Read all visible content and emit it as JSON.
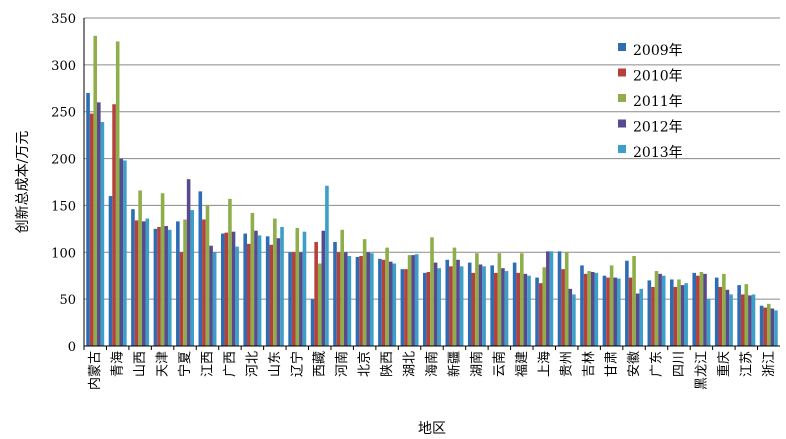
{
  "chart_data": {
    "type": "bar",
    "xlabel": "地区",
    "ylabel": "创新总成本/万元",
    "ylim": [
      0,
      350
    ],
    "yticks": [
      0,
      50,
      100,
      150,
      200,
      250,
      300,
      350
    ],
    "grid": true,
    "legend_position": "top-right",
    "categories": [
      "内蒙古",
      "青海",
      "山西",
      "天津",
      "宁夏",
      "江西",
      "广西",
      "河北",
      "山东",
      "辽宁",
      "西藏",
      "河南",
      "北京",
      "陕西",
      "湖北",
      "海南",
      "新疆",
      "湖南",
      "云南",
      "福建",
      "上海",
      "贵州",
      "吉林",
      "甘肃",
      "安徽",
      "广东",
      "四川",
      "黑龙江",
      "重庆",
      "江苏",
      "浙江"
    ],
    "series": [
      {
        "name": "2009年",
        "color": "#2e6db4",
        "values": [
          270,
          160,
          146,
          125,
          133,
          165,
          120,
          120,
          117,
          100,
          50,
          111,
          95,
          93,
          82,
          78,
          92,
          89,
          86,
          89,
          73,
          101,
          86,
          75,
          91,
          70,
          71,
          78,
          73,
          65,
          43
        ]
      },
      {
        "name": "2010年",
        "color": "#b5403c",
        "values": [
          248,
          258,
          134,
          127,
          100,
          135,
          121,
          109,
          108,
          100,
          111,
          100,
          96,
          92,
          82,
          79,
          85,
          78,
          78,
          78,
          67,
          82,
          77,
          73,
          73,
          63,
          63,
          75,
          63,
          55,
          41
        ]
      },
      {
        "name": "2011年",
        "color": "#8fae4a",
        "values": [
          331,
          325,
          166,
          163,
          135,
          150,
          157,
          142,
          136,
          126,
          88,
          124,
          114,
          105,
          97,
          116,
          105,
          99,
          99,
          99,
          84,
          100,
          80,
          86,
          96,
          80,
          71,
          79,
          77,
          66,
          45
        ]
      },
      {
        "name": "2012年",
        "color": "#584a8c",
        "values": [
          260,
          200,
          133,
          128,
          178,
          107,
          122,
          123,
          115,
          100,
          123,
          100,
          100,
          90,
          97,
          89,
          92,
          87,
          83,
          77,
          101,
          61,
          79,
          73,
          56,
          77,
          65,
          77,
          60,
          54,
          40
        ]
      },
      {
        "name": "2013年",
        "color": "#3b9fc7",
        "values": [
          239,
          198,
          136,
          124,
          145,
          100,
          106,
          118,
          127,
          122,
          171,
          96,
          99,
          88,
          98,
          83,
          85,
          85,
          80,
          75,
          101,
          55,
          78,
          72,
          61,
          75,
          67,
          50,
          55,
          55,
          38
        ]
      }
    ]
  }
}
